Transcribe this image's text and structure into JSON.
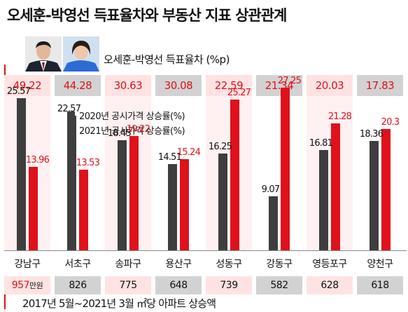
{
  "title": "오세훈-박영선 득표율차와 부동산 지표 상관관계",
  "gap_caption": "오세훈-박영선 득표율차 (%p)",
  "rise_caption": "2017년 5월~2021년 3월 ㎡당 아파트 상승액",
  "first_rise_unit": "만원",
  "colors": {
    "series_2020": "#3e3e3e",
    "series_2021": "#e0111b",
    "accent": "#e0111b"
  },
  "chart_data": {
    "type": "bar",
    "categories": [
      "강남구",
      "서초구",
      "송파구",
      "용산구",
      "성동구",
      "강동구",
      "영등포구",
      "양천구"
    ],
    "series": [
      {
        "name": "2020년 공시가격 상승률(%)",
        "values": [
          25.57,
          22.57,
          18.45,
          14.51,
          16.25,
          9.07,
          16.81,
          18.36
        ],
        "labels": [
          "25.57",
          "22.57",
          "18.45",
          "14.51",
          "16.25",
          "9.07",
          "16.81",
          "18.36"
        ]
      },
      {
        "name": "2021년 공시가격 상승률(%)",
        "values": [
          13.96,
          13.53,
          19.22,
          15.24,
          25.27,
          27.25,
          21.28,
          20.3
        ],
        "labels": [
          "13.96",
          "13.53",
          "19.22",
          "15.24",
          "25.27",
          "27.25",
          "21.28",
          "20.3"
        ]
      }
    ],
    "vote_gap_labels": [
      "49.22",
      "44.28",
      "30.63",
      "30.08",
      "22.59",
      "21.34",
      "20.03",
      "17.83"
    ],
    "apartment_rise_labels": [
      "957",
      "826",
      "775",
      "648",
      "739",
      "582",
      "628",
      "618"
    ],
    "ylim": [
      0,
      30
    ]
  }
}
